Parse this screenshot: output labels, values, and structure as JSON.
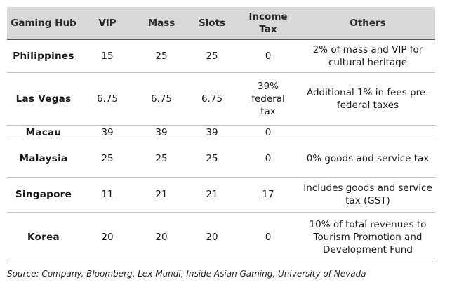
{
  "headers": [
    "Gaming Hub",
    "VIP",
    "Mass",
    "Slots",
    "Income Tax",
    "Others"
  ],
  "rows": [
    {
      "hub": "Philippines",
      "vip": "15",
      "mass": "25",
      "slots": "25",
      "income_tax": "0",
      "others": "2% of mass and VIP for cultural heritage"
    },
    {
      "hub": "Las Vegas",
      "vip": "6.75",
      "mass": "6.75",
      "slots": "6.75",
      "income_tax": "39% federal tax",
      "others": "Additional 1% in fees pre-federal taxes"
    },
    {
      "hub": "Macau",
      "vip": "39",
      "mass": "39",
      "slots": "39",
      "income_tax": "0",
      "others": ""
    },
    {
      "hub": "Malaysia",
      "vip": "25",
      "mass": "25",
      "slots": "25",
      "income_tax": "0",
      "others": "0% goods and service tax"
    },
    {
      "hub": "Singapore",
      "vip": "11",
      "mass": "21",
      "slots": "21",
      "income_tax": "17",
      "others": "Includes goods and service tax (GST)"
    },
    {
      "hub": "Korea",
      "vip": "20",
      "mass": "20",
      "slots": "20",
      "income_tax": "0",
      "others": "10% of total revenues to Tourism Promotion and Development Fund"
    }
  ],
  "source": "Source: Company, Bloomberg, Lex Mundi, Inside Asian Gaming, University of Nevada"
}
